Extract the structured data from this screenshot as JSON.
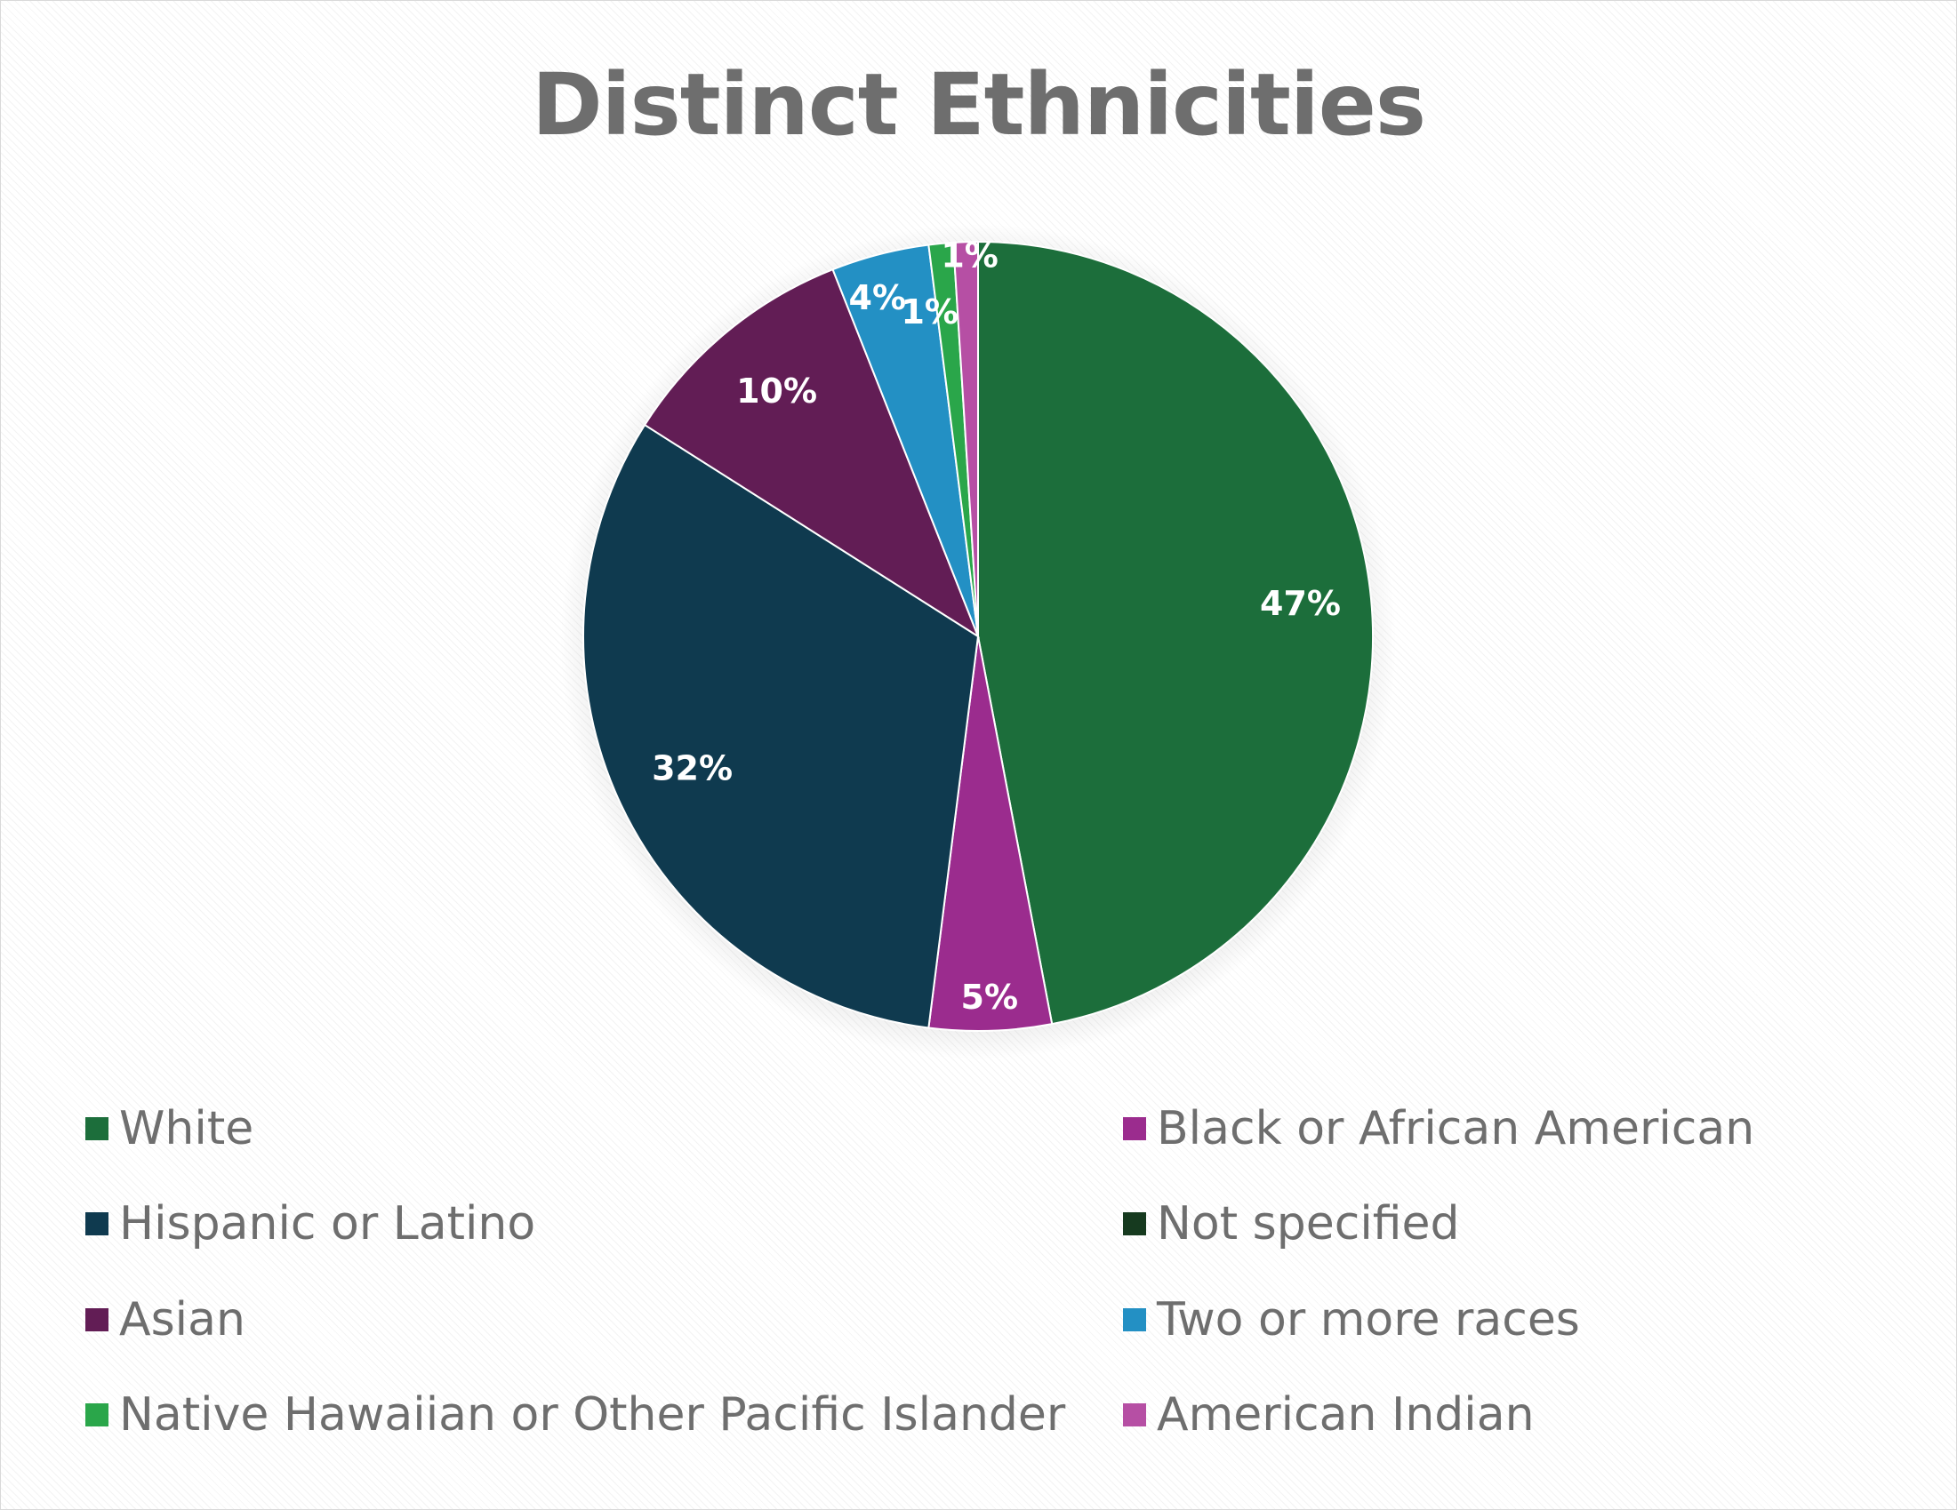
{
  "chart_data": {
    "type": "pie",
    "title": "Distinct Ethnicities",
    "slices": [
      {
        "label": "White",
        "value": 47,
        "display": "47%",
        "color": "#1c6e3b"
      },
      {
        "label": "Black or African American",
        "value": 5,
        "display": "5%",
        "color": "#9b2c8e"
      },
      {
        "label": "Hispanic or Latino",
        "value": 32,
        "display": "32%",
        "color": "#0f3a4f"
      },
      {
        "label": "Not specified",
        "value": 0,
        "display": "",
        "color": "#163a1f"
      },
      {
        "label": "Asian",
        "value": 10,
        "display": "10%",
        "color": "#621d55"
      },
      {
        "label": "Two or more races",
        "value": 4,
        "display": "4%",
        "color": "#2390c4"
      },
      {
        "label": "Native Hawaiian or Other Pacific Islander",
        "value": 1,
        "display": "1%",
        "color": "#2aa64a"
      },
      {
        "label": "American Indian",
        "value": 1,
        "display": "1%",
        "color": "#b64fa4"
      }
    ],
    "legend_position": "bottom",
    "data_label_color": "#ffffff"
  }
}
